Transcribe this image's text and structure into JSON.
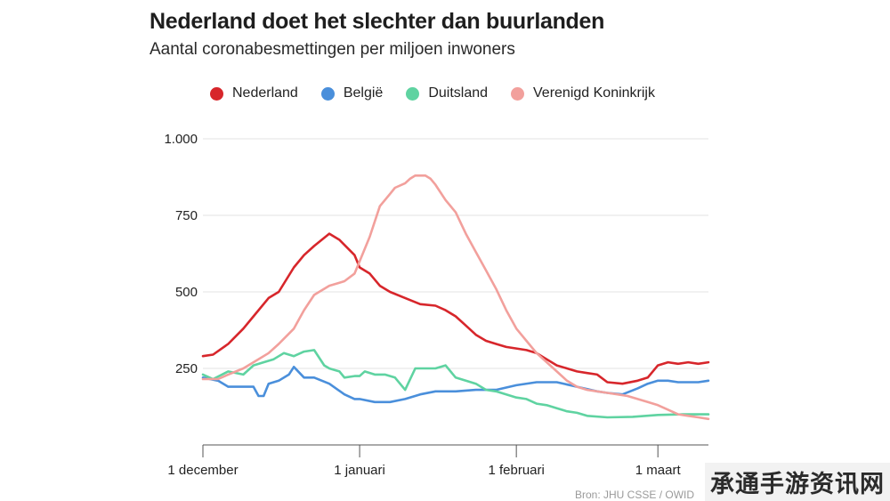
{
  "chart_data": {
    "type": "line",
    "title": "Nederland doet het slechter dan buurlanden",
    "subtitle": "Aantal coronabesmettingen per miljoen inwoners",
    "ylim": [
      0,
      1000
    ],
    "y_ticks": [
      250,
      500,
      750,
      1000
    ],
    "y_tick_labels": [
      "250",
      "500",
      "750",
      "1.000"
    ],
    "xlim_days": [
      0,
      100
    ],
    "x_ticks": [
      {
        "day": 0,
        "label": "1 december"
      },
      {
        "day": 31,
        "label": "1 januari"
      },
      {
        "day": 62,
        "label": "1 februari"
      },
      {
        "day": 90,
        "label": "1 maart"
      }
    ],
    "grid": true,
    "legend_position": "top",
    "source": "Bron: JHU CSSE / OWID",
    "series": [
      {
        "name": "Nederland",
        "color": "#d7262b",
        "x": [
          0,
          2,
          5,
          8,
          10,
          13,
          15,
          18,
          20,
          22,
          25,
          27,
          30,
          31,
          33,
          35,
          37,
          40,
          43,
          46,
          48,
          50,
          52,
          54,
          56,
          58,
          60,
          62,
          64,
          66,
          68,
          70,
          72,
          74,
          76,
          78,
          80,
          83,
          86,
          88,
          90,
          92,
          94,
          96,
          98,
          100
        ],
        "y": [
          290,
          295,
          330,
          380,
          420,
          480,
          500,
          580,
          620,
          650,
          690,
          670,
          620,
          580,
          560,
          520,
          500,
          480,
          460,
          455,
          440,
          420,
          390,
          360,
          340,
          330,
          320,
          315,
          310,
          300,
          280,
          260,
          250,
          240,
          235,
          230,
          205,
          200,
          210,
          220,
          260,
          270,
          265,
          270,
          265,
          270
        ]
      },
      {
        "name": "België",
        "color": "#4a8fdb",
        "x": [
          0,
          3,
          5,
          8,
          10,
          11,
          12,
          13,
          15,
          17,
          18,
          20,
          22,
          25,
          28,
          30,
          31,
          34,
          37,
          40,
          43,
          46,
          50,
          54,
          58,
          62,
          66,
          70,
          74,
          78,
          80,
          83,
          86,
          88,
          90,
          92,
          94,
          96,
          98,
          100
        ],
        "y": [
          220,
          210,
          190,
          190,
          190,
          160,
          160,
          200,
          210,
          230,
          255,
          220,
          220,
          200,
          165,
          150,
          150,
          140,
          140,
          150,
          165,
          175,
          175,
          180,
          180,
          195,
          205,
          205,
          190,
          175,
          170,
          165,
          185,
          200,
          210,
          210,
          205,
          205,
          205,
          210
        ]
      },
      {
        "name": "Duitsland",
        "color": "#5fd3a1",
        "x": [
          0,
          2,
          5,
          8,
          10,
          12,
          14,
          16,
          18,
          20,
          22,
          24,
          25,
          26,
          27,
          28,
          30,
          31,
          32,
          34,
          36,
          38,
          40,
          42,
          44,
          46,
          48,
          50,
          52,
          54,
          56,
          58,
          60,
          62,
          64,
          66,
          68,
          70,
          72,
          74,
          76,
          80,
          85,
          90,
          95,
          100
        ],
        "y": [
          230,
          215,
          240,
          230,
          260,
          270,
          280,
          300,
          290,
          305,
          310,
          260,
          250,
          245,
          240,
          220,
          225,
          225,
          240,
          230,
          230,
          220,
          180,
          250,
          250,
          250,
          260,
          220,
          210,
          200,
          180,
          175,
          165,
          155,
          150,
          135,
          130,
          120,
          110,
          105,
          95,
          90,
          92,
          98,
          100,
          100
        ]
      },
      {
        "name": "Verenigd Koninkrijk",
        "color": "#f2a09c",
        "x": [
          0,
          3,
          5,
          8,
          10,
          13,
          15,
          18,
          20,
          22,
          23,
          25,
          27,
          28,
          30,
          31,
          33,
          35,
          37,
          38,
          40,
          41,
          42,
          43,
          44,
          45,
          46,
          48,
          50,
          52,
          54,
          56,
          58,
          60,
          62,
          64,
          66,
          68,
          70,
          72,
          74,
          76,
          78,
          80,
          82,
          84,
          86,
          88,
          90,
          92,
          94,
          96,
          98,
          100
        ],
        "y": [
          215,
          215,
          230,
          250,
          270,
          300,
          330,
          380,
          440,
          490,
          500,
          520,
          530,
          535,
          560,
          600,
          680,
          780,
          820,
          840,
          855,
          870,
          880,
          880,
          880,
          870,
          850,
          800,
          760,
          690,
          630,
          570,
          510,
          440,
          380,
          340,
          300,
          270,
          240,
          210,
          190,
          180,
          175,
          170,
          165,
          160,
          150,
          140,
          130,
          115,
          100,
          95,
          90,
          85
        ]
      }
    ]
  }
}
